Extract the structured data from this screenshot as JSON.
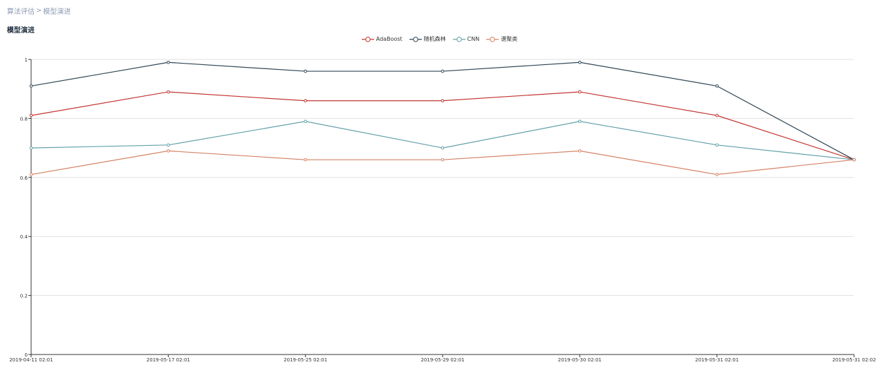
{
  "breadcrumb": {
    "parent": "算法评估",
    "separator": ">",
    "current": "模型演进"
  },
  "page_title": "模型演进",
  "chart_data": {
    "type": "line",
    "x": [
      "2019-04-11 02:01",
      "2019-05-17 02:01",
      "2019-05-25 02:01",
      "2019-05-29 02:01",
      "2019-05-30 02:01",
      "2019-05-31 02:01",
      "2019-05-31 02:02"
    ],
    "ylim": [
      0,
      1
    ],
    "yticks": [
      0,
      0.2,
      0.4,
      0.6,
      0.8,
      1
    ],
    "grid": true,
    "legend_position": "top-center",
    "series": [
      {
        "name": "AdaBoost",
        "color": "#c23531",
        "values": [
          0.81,
          0.89,
          0.86,
          0.86,
          0.89,
          0.81,
          0.66
        ]
      },
      {
        "name": "随机森林",
        "color": "#2f4554",
        "values": [
          0.91,
          0.99,
          0.96,
          0.96,
          0.99,
          0.91,
          0.66
        ]
      },
      {
        "name": "CNN",
        "color": "#61a0a8",
        "values": [
          0.7,
          0.71,
          0.79,
          0.7,
          0.79,
          0.71,
          0.66
        ]
      },
      {
        "name": "谱聚类",
        "color": "#d48265",
        "values": [
          0.61,
          0.69,
          0.66,
          0.66,
          0.69,
          0.61,
          0.66
        ]
      }
    ]
  }
}
